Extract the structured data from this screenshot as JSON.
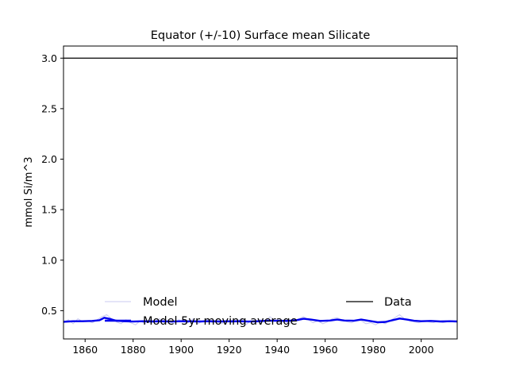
{
  "chart_data": {
    "type": "line",
    "title": "Equator (+/-10) Surface mean Silicate",
    "xlabel": "",
    "ylabel": "mmol Si/m^3",
    "xlim": [
      1851,
      2015
    ],
    "ylim": [
      0.22,
      3.12
    ],
    "x_ticks": [
      1860,
      1880,
      1900,
      1920,
      1940,
      1960,
      1980,
      2000
    ],
    "y_ticks": [
      0.5,
      1.0,
      1.5,
      2.0,
      2.5,
      3.0
    ],
    "y_tick_labels": [
      "0.5",
      "1.0",
      "1.5",
      "2.0",
      "2.5",
      "3.0"
    ],
    "grid": false,
    "legend_placement": "bottom",
    "legend": [
      {
        "label": "Model",
        "color": "#c8c8f0"
      },
      {
        "label": "Model 5yr moving average",
        "color": "#0000ee"
      },
      {
        "label": "Data",
        "color": "#000000"
      }
    ],
    "series": [
      {
        "name": "Model",
        "color": "#c8c8f0",
        "x": [
          1851,
          1853,
          1855,
          1857,
          1859,
          1861,
          1863,
          1865,
          1867,
          1869,
          1871,
          1873,
          1875,
          1877,
          1879,
          1881,
          1883,
          1885,
          1887,
          1889,
          1891,
          1893,
          1895,
          1897,
          1899,
          1901,
          1903,
          1905,
          1907,
          1909,
          1911,
          1913,
          1915,
          1917,
          1919,
          1921,
          1923,
          1925,
          1927,
          1929,
          1931,
          1933,
          1935,
          1937,
          1939,
          1941,
          1943,
          1945,
          1947,
          1949,
          1951,
          1953,
          1955,
          1957,
          1959,
          1961,
          1963,
          1965,
          1967,
          1969,
          1971,
          1973,
          1975,
          1977,
          1979,
          1981,
          1983,
          1985,
          1987,
          1989,
          1991,
          1993,
          1995,
          1997,
          1999,
          2001,
          2003,
          2005,
          2007,
          2009,
          2011,
          2013,
          2015
        ],
        "values": [
          0.38,
          0.41,
          0.37,
          0.42,
          0.39,
          0.4,
          0.38,
          0.41,
          0.44,
          0.46,
          0.42,
          0.39,
          0.37,
          0.41,
          0.38,
          0.36,
          0.4,
          0.37,
          0.41,
          0.39,
          0.42,
          0.38,
          0.4,
          0.37,
          0.41,
          0.39,
          0.38,
          0.42,
          0.37,
          0.4,
          0.41,
          0.38,
          0.4,
          0.37,
          0.41,
          0.38,
          0.39,
          0.42,
          0.36,
          0.4,
          0.38,
          0.41,
          0.39,
          0.44,
          0.4,
          0.38,
          0.41,
          0.37,
          0.4,
          0.42,
          0.44,
          0.41,
          0.38,
          0.4,
          0.37,
          0.39,
          0.42,
          0.43,
          0.41,
          0.39,
          0.38,
          0.41,
          0.4,
          0.37,
          0.38,
          0.36,
          0.39,
          0.37,
          0.4,
          0.43,
          0.46,
          0.42,
          0.4,
          0.39,
          0.38,
          0.4,
          0.39,
          0.38,
          0.4,
          0.38,
          0.39,
          0.4,
          0.39
        ]
      },
      {
        "name": "Model 5yr moving average",
        "color": "#0000ee",
        "x": [
          1851,
          1855,
          1859,
          1863,
          1866,
          1868,
          1870,
          1873,
          1876,
          1880,
          1884,
          1888,
          1892,
          1896,
          1900,
          1904,
          1908,
          1912,
          1916,
          1920,
          1924,
          1928,
          1932,
          1936,
          1940,
          1944,
          1948,
          1951,
          1954,
          1958,
          1962,
          1965,
          1968,
          1972,
          1975,
          1978,
          1982,
          1985,
          1988,
          1991,
          1994,
          1997,
          2000,
          2004,
          2008,
          2012,
          2015
        ],
        "values": [
          0.39,
          0.395,
          0.395,
          0.398,
          0.405,
          0.43,
          0.42,
          0.4,
          0.395,
          0.392,
          0.395,
          0.393,
          0.395,
          0.392,
          0.395,
          0.394,
          0.393,
          0.395,
          0.393,
          0.394,
          0.395,
          0.392,
          0.395,
          0.4,
          0.4,
          0.398,
          0.405,
          0.42,
          0.412,
          0.398,
          0.402,
          0.412,
          0.402,
          0.4,
          0.412,
          0.4,
          0.385,
          0.388,
          0.405,
          0.422,
          0.412,
          0.4,
          0.395,
          0.398,
          0.393,
          0.395,
          0.393
        ]
      },
      {
        "name": "Data",
        "color": "#000000",
        "x": [
          1851,
          2015
        ],
        "values": [
          3.0,
          3.0
        ]
      }
    ]
  }
}
